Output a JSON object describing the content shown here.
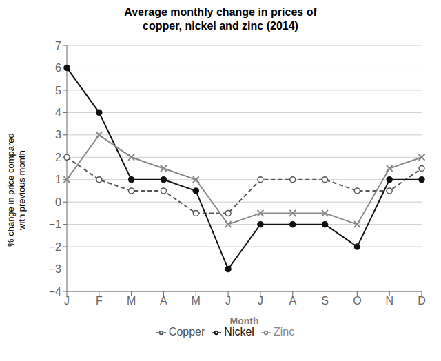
{
  "chart_data": {
    "type": "line",
    "title": "Average monthly change in prices of\ncopper, nickel and zinc (2014)",
    "x_label": "Month",
    "y_label": "% change in price compared\nwith previous month",
    "categories": [
      "J",
      "F",
      "M",
      "A",
      "M",
      "J",
      "J",
      "A",
      "S",
      "O",
      "N",
      "D"
    ],
    "series": [
      {
        "name": "Copper",
        "color": "#555555",
        "line_style": "dashed",
        "marker": "circle_open",
        "values": [
          2,
          1,
          0.5,
          0.5,
          -0.5,
          -0.5,
          1,
          1,
          1,
          0.5,
          0.5,
          1.5
        ]
      },
      {
        "name": "Nickel",
        "color": "#111111",
        "line_style": "solid",
        "marker": "circle",
        "values": [
          6,
          4,
          1,
          1,
          0.5,
          -3,
          -1,
          -1,
          -1,
          -2,
          1,
          1
        ]
      },
      {
        "name": "Zinc",
        "color": "#888888",
        "line_style": "solid",
        "marker": "x",
        "values": [
          1,
          3,
          2,
          1.5,
          1,
          -1,
          -0.5,
          -0.5,
          -0.5,
          -1,
          1.5,
          2
        ]
      }
    ],
    "ylim": [
      -4,
      7
    ],
    "yticks": [
      {
        "value": -4,
        "label": "−4"
      },
      {
        "value": -3,
        "label": "−3"
      },
      {
        "value": -2,
        "label": "−2"
      },
      {
        "value": -1,
        "label": "−1"
      },
      0,
      1,
      2,
      3,
      4,
      5,
      6,
      7
    ],
    "grid": true,
    "legend": "bottom"
  }
}
